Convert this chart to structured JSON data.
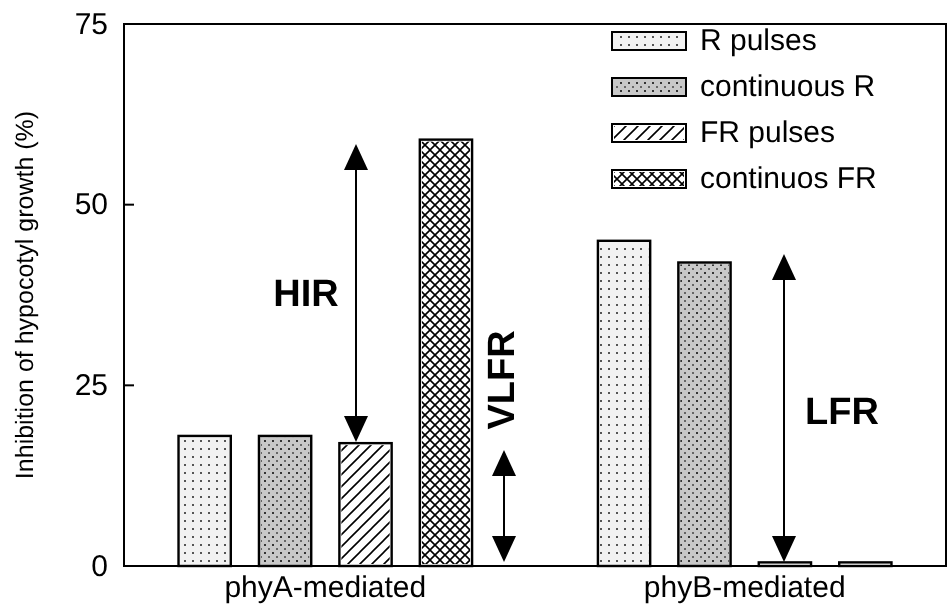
{
  "chart_data": {
    "type": "bar",
    "ylabel": "Inhibition of hypocotyl growth (%)",
    "categories": [
      "phyA-mediated",
      "phyB-mediated"
    ],
    "series": [
      {
        "name": "R pulses",
        "color": "#f2f2f2",
        "values": [
          18,
          45
        ]
      },
      {
        "name": "continuous R",
        "color": "#c8c8c8",
        "values": [
          18,
          42
        ]
      },
      {
        "name": "FR pulses",
        "color": "#ffffff",
        "values": [
          17,
          0.5
        ]
      },
      {
        "name": "continuos FR",
        "color": "#ffffff",
        "values": [
          59,
          0.5
        ]
      }
    ],
    "ylim": [
      0,
      75
    ],
    "yticks": [
      0,
      25,
      50,
      75
    ],
    "grid": false,
    "legend": "top right",
    "annotations": [
      "HIR",
      "VLFR",
      "LFR"
    ]
  }
}
